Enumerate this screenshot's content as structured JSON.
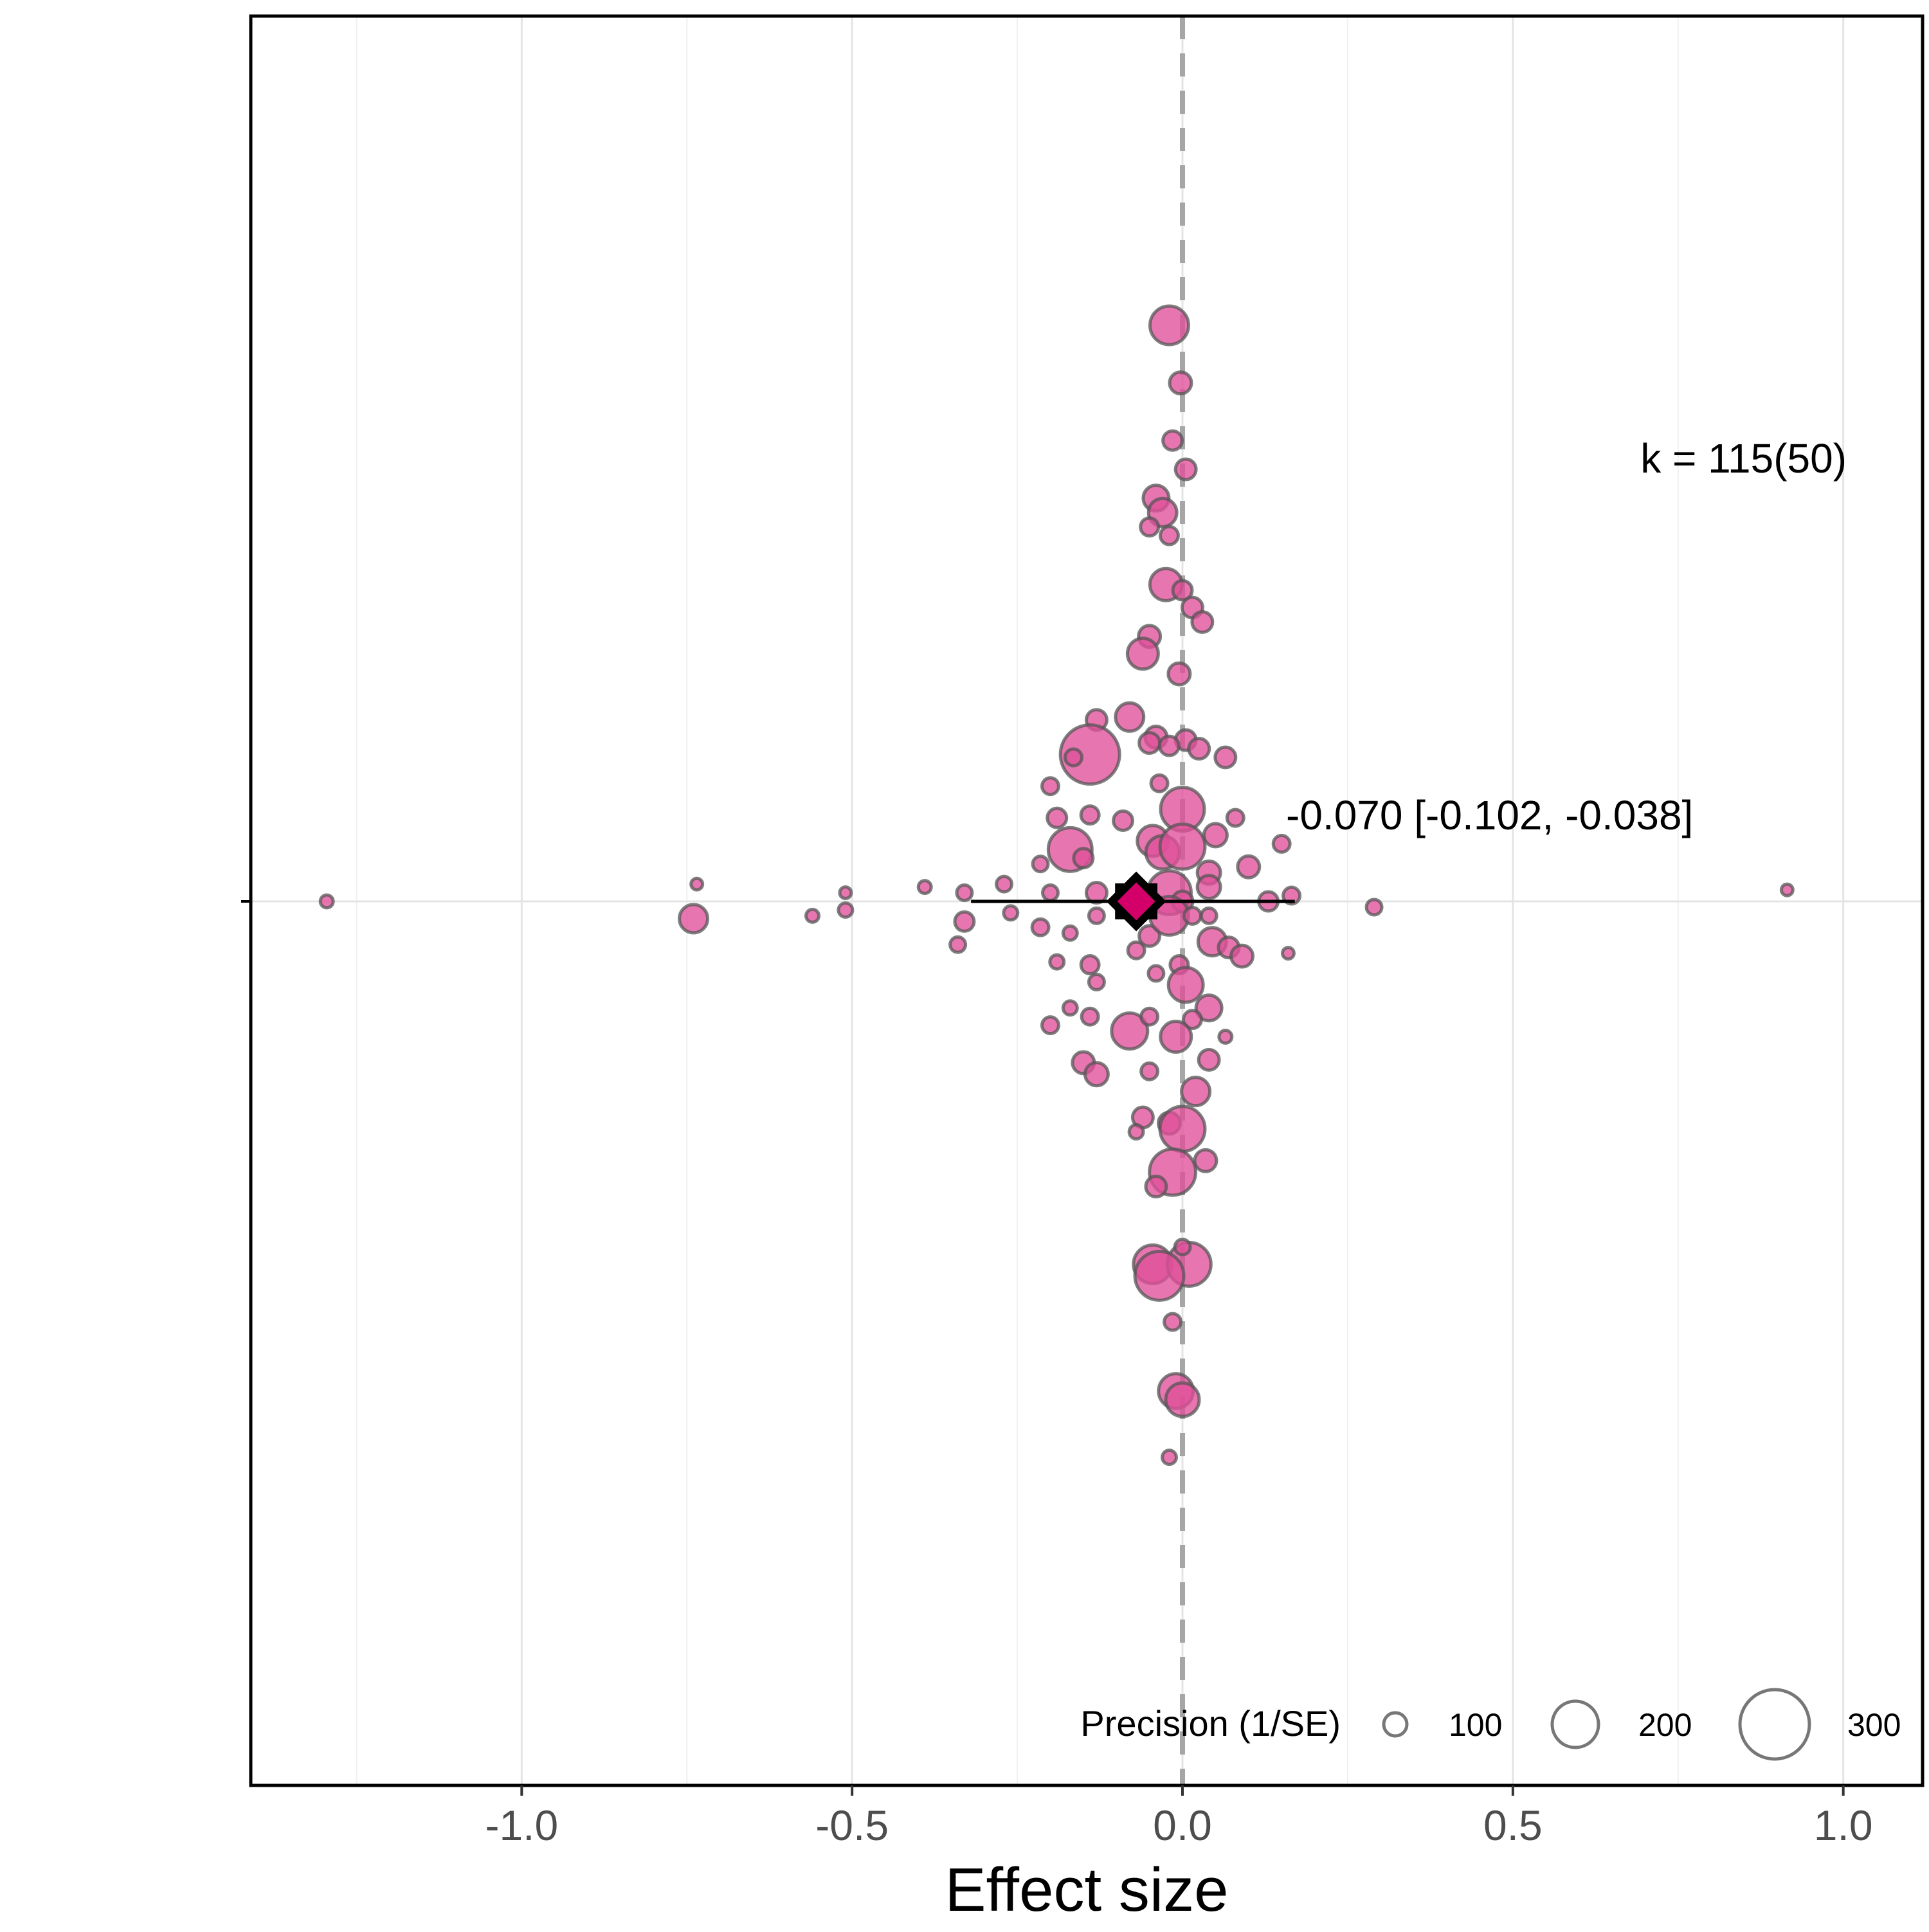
{
  "chart_data": {
    "type": "scatter",
    "title": "",
    "xlabel": "Effect size",
    "ylabel": "",
    "xlim": [
      -1.41,
      1.12
    ],
    "x_ticks": [
      -1.0,
      -0.5,
      0.0,
      0.5,
      1.0
    ],
    "x_tick_labels": [
      "-1.0",
      "-0.5",
      "0.0",
      "0.5",
      "1.0"
    ],
    "x_minor_grid": [
      -1.25,
      -0.75,
      -0.25,
      0.25,
      0.75
    ],
    "grid": true,
    "reference_line_x": 0.0,
    "annotation_k": "k = 115(50)",
    "summary": {
      "estimate": -0.07,
      "ci_low": -0.102,
      "ci_high": -0.038,
      "pi_low": -0.32,
      "pi_high": 0.17,
      "label": "-0.070 [-0.102, -0.038]"
    },
    "size_legend": {
      "title": "Precision (1/SE)",
      "values": [
        100,
        200,
        300
      ],
      "labels": [
        "100",
        "200",
        "300"
      ]
    },
    "marker_color": "#e0509a",
    "summary_color": "#d4006a",
    "points_note": "y values are vertical jitter positions relative to the summary row (0), in arbitrary units",
    "points": [
      {
        "x": -0.02,
        "y": 2.0,
        "p": 150
      },
      {
        "x": -0.003,
        "y": 1.8,
        "p": 85
      },
      {
        "x": -0.015,
        "y": 1.6,
        "p": 75
      },
      {
        "x": 0.005,
        "y": 1.5,
        "p": 80
      },
      {
        "x": -0.04,
        "y": 1.4,
        "p": 100
      },
      {
        "x": -0.03,
        "y": 1.35,
        "p": 110
      },
      {
        "x": -0.05,
        "y": 1.3,
        "p": 70
      },
      {
        "x": -0.02,
        "y": 1.27,
        "p": 70
      },
      {
        "x": -0.025,
        "y": 1.1,
        "p": 125
      },
      {
        "x": 0.0,
        "y": 1.08,
        "p": 75
      },
      {
        "x": 0.015,
        "y": 1.02,
        "p": 80
      },
      {
        "x": 0.03,
        "y": 0.97,
        "p": 80
      },
      {
        "x": -0.05,
        "y": 0.92,
        "p": 85
      },
      {
        "x": -0.06,
        "y": 0.86,
        "p": 120
      },
      {
        "x": -0.005,
        "y": 0.79,
        "p": 85
      },
      {
        "x": -0.13,
        "y": 0.63,
        "p": 80
      },
      {
        "x": -0.08,
        "y": 0.64,
        "p": 110
      },
      {
        "x": -0.04,
        "y": 0.57,
        "p": 85
      },
      {
        "x": -0.05,
        "y": 0.55,
        "p": 80
      },
      {
        "x": 0.005,
        "y": 0.56,
        "p": 80
      },
      {
        "x": -0.02,
        "y": 0.54,
        "p": 75
      },
      {
        "x": 0.025,
        "y": 0.53,
        "p": 80
      },
      {
        "x": 0.065,
        "y": 0.5,
        "p": 80
      },
      {
        "x": -0.14,
        "y": 0.51,
        "p": 230
      },
      {
        "x": -0.165,
        "y": 0.5,
        "p": 65
      },
      {
        "x": -0.2,
        "y": 0.4,
        "p": 65
      },
      {
        "x": -0.035,
        "y": 0.41,
        "p": 65
      },
      {
        "x": 0.0,
        "y": 0.32,
        "p": 170
      },
      {
        "x": -0.19,
        "y": 0.29,
        "p": 75
      },
      {
        "x": -0.14,
        "y": 0.3,
        "p": 70
      },
      {
        "x": -0.09,
        "y": 0.28,
        "p": 75
      },
      {
        "x": 0.08,
        "y": 0.29,
        "p": 65
      },
      {
        "x": -0.17,
        "y": 0.18,
        "p": 170
      },
      {
        "x": 0.05,
        "y": 0.23,
        "p": 90
      },
      {
        "x": -0.045,
        "y": 0.21,
        "p": 120
      },
      {
        "x": -0.03,
        "y": 0.17,
        "p": 130
      },
      {
        "x": 0.0,
        "y": 0.19,
        "p": 175
      },
      {
        "x": 0.15,
        "y": 0.2,
        "p": 65
      },
      {
        "x": -0.15,
        "y": 0.15,
        "p": 75
      },
      {
        "x": -0.215,
        "y": 0.13,
        "p": 60
      },
      {
        "x": 0.1,
        "y": 0.12,
        "p": 85
      },
      {
        "x": 0.04,
        "y": 0.1,
        "p": 90
      },
      {
        "x": -0.27,
        "y": 0.06,
        "p": 60
      },
      {
        "x": -0.2,
        "y": 0.03,
        "p": 60
      },
      {
        "x": -0.33,
        "y": 0.03,
        "p": 60
      },
      {
        "x": -0.39,
        "y": 0.05,
        "p": 50
      },
      {
        "x": -0.13,
        "y": 0.03,
        "p": 80
      },
      {
        "x": 0.04,
        "y": 0.05,
        "p": 90
      },
      {
        "x": -0.02,
        "y": 0.03,
        "p": 170
      },
      {
        "x": 0.0,
        "y": 0.0,
        "p": 80
      },
      {
        "x": 0.13,
        "y": 0.0,
        "p": 75
      },
      {
        "x": 0.165,
        "y": 0.02,
        "p": 65
      },
      {
        "x": 0.04,
        "y": -0.05,
        "p": 60
      },
      {
        "x": -0.51,
        "y": 0.03,
        "p": 45
      },
      {
        "x": -0.735,
        "y": 0.06,
        "p": 45
      },
      {
        "x": -1.295,
        "y": 0.0,
        "p": 50
      },
      {
        "x": 0.915,
        "y": 0.04,
        "p": 45
      },
      {
        "x": 0.29,
        "y": -0.02,
        "p": 60
      },
      {
        "x": -0.74,
        "y": -0.06,
        "p": 110
      },
      {
        "x": -0.56,
        "y": -0.05,
        "p": 50
      },
      {
        "x": -0.51,
        "y": -0.03,
        "p": 55
      },
      {
        "x": -0.33,
        "y": -0.07,
        "p": 75
      },
      {
        "x": -0.34,
        "y": -0.15,
        "p": 60
      },
      {
        "x": -0.215,
        "y": -0.09,
        "p": 65
      },
      {
        "x": -0.26,
        "y": -0.04,
        "p": 55
      },
      {
        "x": -0.17,
        "y": -0.11,
        "p": 55
      },
      {
        "x": -0.13,
        "y": -0.05,
        "p": 60
      },
      {
        "x": -0.07,
        "y": -0.17,
        "p": 65
      },
      {
        "x": -0.05,
        "y": -0.12,
        "p": 80
      },
      {
        "x": -0.02,
        "y": -0.05,
        "p": 150
      },
      {
        "x": 0.015,
        "y": -0.05,
        "p": 65
      },
      {
        "x": 0.045,
        "y": -0.14,
        "p": 110
      },
      {
        "x": 0.07,
        "y": -0.16,
        "p": 80
      },
      {
        "x": 0.09,
        "y": -0.19,
        "p": 85
      },
      {
        "x": 0.16,
        "y": -0.18,
        "p": 45
      },
      {
        "x": -0.19,
        "y": -0.21,
        "p": 55
      },
      {
        "x": -0.14,
        "y": -0.22,
        "p": 70
      },
      {
        "x": -0.13,
        "y": -0.28,
        "p": 60
      },
      {
        "x": -0.04,
        "y": -0.25,
        "p": 60
      },
      {
        "x": -0.005,
        "y": -0.22,
        "p": 70
      },
      {
        "x": 0.005,
        "y": -0.29,
        "p": 135
      },
      {
        "x": -0.2,
        "y": -0.43,
        "p": 65
      },
      {
        "x": -0.17,
        "y": -0.37,
        "p": 55
      },
      {
        "x": -0.14,
        "y": -0.4,
        "p": 65
      },
      {
        "x": -0.08,
        "y": -0.45,
        "p": 140
      },
      {
        "x": -0.05,
        "y": -0.4,
        "p": 65
      },
      {
        "x": 0.04,
        "y": -0.37,
        "p": 100
      },
      {
        "x": 0.015,
        "y": -0.41,
        "p": 70
      },
      {
        "x": -0.01,
        "y": -0.47,
        "p": 120
      },
      {
        "x": 0.065,
        "y": -0.47,
        "p": 50
      },
      {
        "x": 0.04,
        "y": -0.55,
        "p": 80
      },
      {
        "x": -0.15,
        "y": -0.56,
        "p": 85
      },
      {
        "x": -0.13,
        "y": -0.6,
        "p": 90
      },
      {
        "x": -0.05,
        "y": -0.59,
        "p": 65
      },
      {
        "x": 0.02,
        "y": -0.66,
        "p": 110
      },
      {
        "x": -0.06,
        "y": -0.75,
        "p": 80
      },
      {
        "x": -0.02,
        "y": -0.77,
        "p": 85
      },
      {
        "x": 0.0,
        "y": -0.79,
        "p": 175
      },
      {
        "x": -0.07,
        "y": -0.8,
        "p": 55
      },
      {
        "x": 0.035,
        "y": -0.9,
        "p": 85
      },
      {
        "x": -0.015,
        "y": -0.94,
        "p": 180
      },
      {
        "x": -0.04,
        "y": -0.99,
        "p": 80
      },
      {
        "x": -0.045,
        "y": -1.26,
        "p": 150
      },
      {
        "x": 0.01,
        "y": -1.26,
        "p": 170
      },
      {
        "x": -0.035,
        "y": -1.3,
        "p": 190
      },
      {
        "x": 0.0,
        "y": -1.2,
        "p": 60
      },
      {
        "x": -0.015,
        "y": -1.46,
        "p": 65
      },
      {
        "x": -0.01,
        "y": -1.7,
        "p": 135
      },
      {
        "x": 0.0,
        "y": -1.73,
        "p": 130
      },
      {
        "x": -0.02,
        "y": -1.93,
        "p": 55
      }
    ]
  }
}
